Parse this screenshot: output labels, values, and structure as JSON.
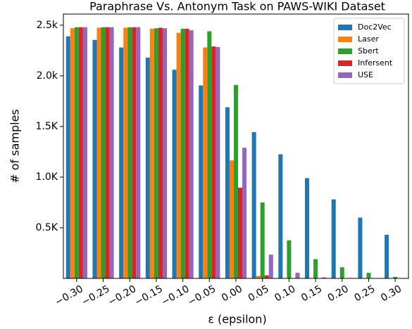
{
  "chart_data": {
    "type": "bar",
    "title": "Paraphrase Vs. Antonym Task on PAWS-WIKI Dataset",
    "x_label": "ε (epsilon)",
    "y_label": "# of samples",
    "categories": [
      "−0.30",
      "−0.25",
      "−0.20",
      "−0.15",
      "−0.10",
      "−0.05",
      "0.00",
      "0.05",
      "0.10",
      "0.15",
      "0.20",
      "0.25",
      "0.30"
    ],
    "series": [
      {
        "name": "Doc2Vec",
        "color": "#1f77b4",
        "values": [
          2390,
          2355,
          2280,
          2180,
          2060,
          1905,
          1690,
          1445,
          1225,
          990,
          780,
          600,
          430
        ]
      },
      {
        "name": "Laser",
        "color": "#ff7f0e",
        "values": [
          2470,
          2475,
          2475,
          2465,
          2425,
          2280,
          1165,
          25,
          0,
          0,
          0,
          0,
          0
        ]
      },
      {
        "name": "Sbert",
        "color": "#2ca02c",
        "values": [
          2480,
          2480,
          2480,
          2470,
          2465,
          2440,
          1910,
          750,
          375,
          190,
          110,
          55,
          15
        ]
      },
      {
        "name": "Infersent",
        "color": "#d62728",
        "values": [
          2480,
          2480,
          2480,
          2475,
          2465,
          2290,
          895,
          30,
          0,
          0,
          0,
          0,
          0
        ]
      },
      {
        "name": "USE",
        "color": "#9467bd",
        "values": [
          2480,
          2480,
          2480,
          2470,
          2450,
          2285,
          1290,
          235,
          55,
          10,
          5,
          0,
          0
        ]
      }
    ],
    "ylim": [
      0,
      2610
    ],
    "yticks": [
      {
        "value": 500,
        "label": "0.5K"
      },
      {
        "value": 1000,
        "label": "1.0K"
      },
      {
        "value": 1500,
        "label": "1.5K"
      },
      {
        "value": 2000,
        "label": "2.0k"
      },
      {
        "value": 2500,
        "label": "2.5k"
      }
    ],
    "legend": "upper right"
  }
}
